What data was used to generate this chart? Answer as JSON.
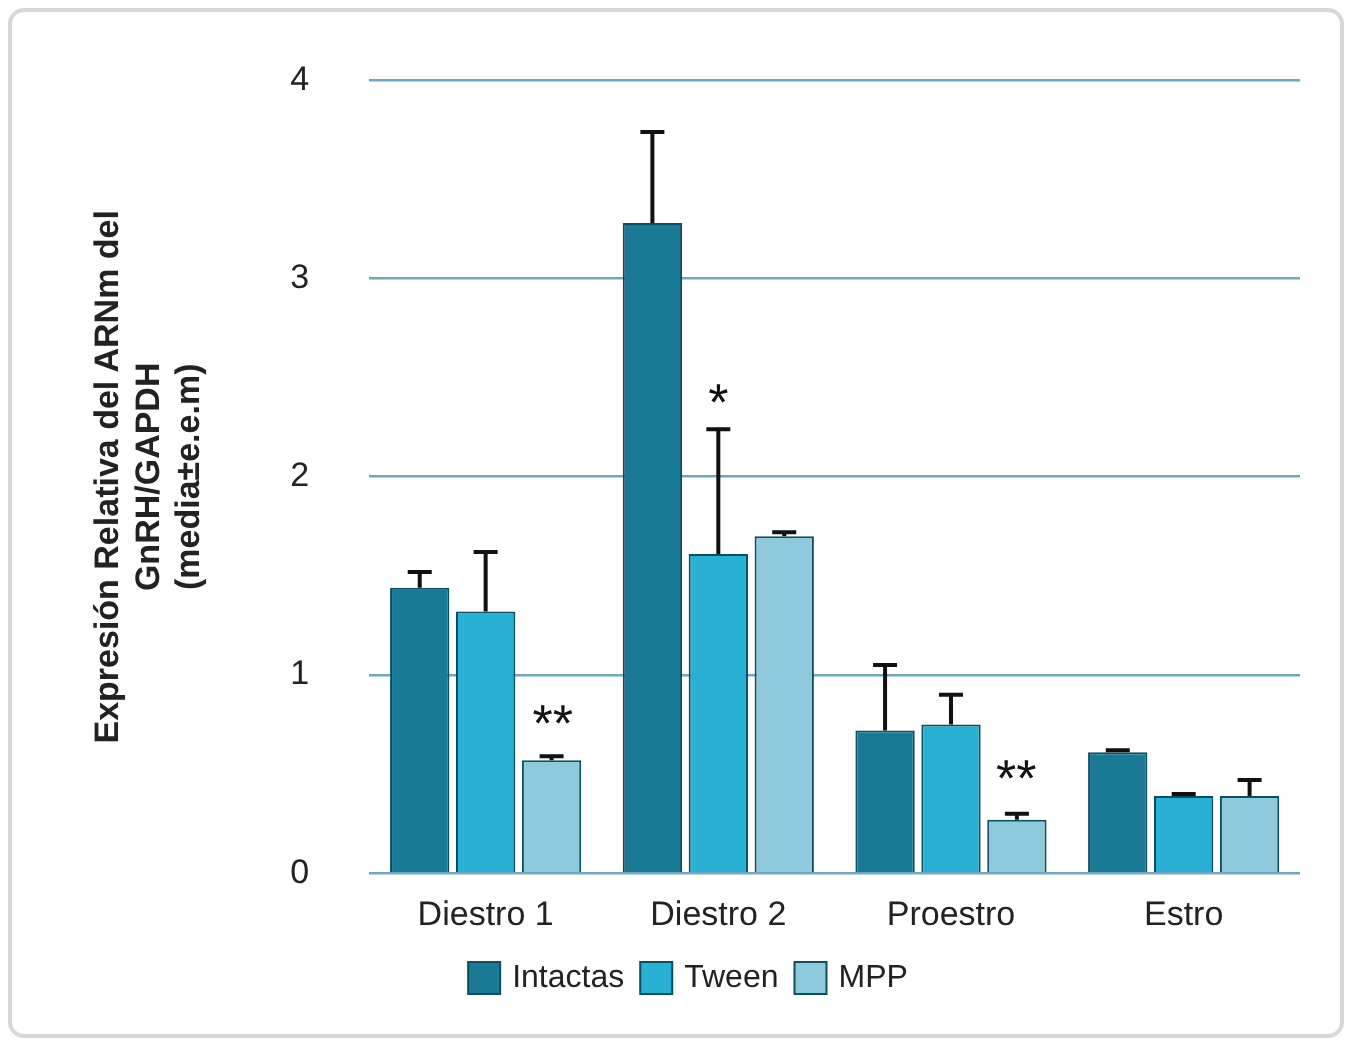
{
  "chart_data": {
    "type": "bar",
    "ylabel": "Expresión Relativa del ARNm del\nGnRH/GAPDH\n(media±e.e.m)",
    "categories": [
      "Diestro 1",
      "Diestro 2",
      "Proestro",
      "Estro"
    ],
    "series": [
      {
        "name": "Intactas",
        "color": "#1a7a96",
        "values": [
          1.44,
          3.28,
          0.72,
          0.61
        ],
        "errors": [
          [
            1.44,
            1.52
          ],
          [
            3.28,
            3.74
          ],
          [
            0.72,
            1.05
          ],
          [
            0.61,
            0.62
          ]
        ]
      },
      {
        "name": "Tween",
        "color": "#2ab0d4",
        "values": [
          1.32,
          1.61,
          0.75,
          0.39
        ],
        "errors": [
          [
            1.32,
            1.62
          ],
          [
            1.61,
            2.24
          ],
          [
            0.75,
            0.9
          ],
          [
            0.39,
            0.4
          ]
        ]
      },
      {
        "name": "MPP",
        "color": "#8ec9dc",
        "values": [
          0.57,
          1.7,
          0.27,
          0.39
        ],
        "errors": [
          [
            0.57,
            0.59
          ],
          [
            1.7,
            1.72
          ],
          [
            0.27,
            0.3
          ],
          [
            0.39,
            0.47
          ]
        ]
      }
    ],
    "ylim": [
      0,
      4
    ],
    "yticks": [
      0,
      1,
      2,
      3,
      4
    ],
    "grid": "y",
    "legend": "bottom",
    "annotations": [
      {
        "text": "*",
        "x": "Diestro 2",
        "y": 1.61
      },
      "**",
      "**"
    ]
  }
}
